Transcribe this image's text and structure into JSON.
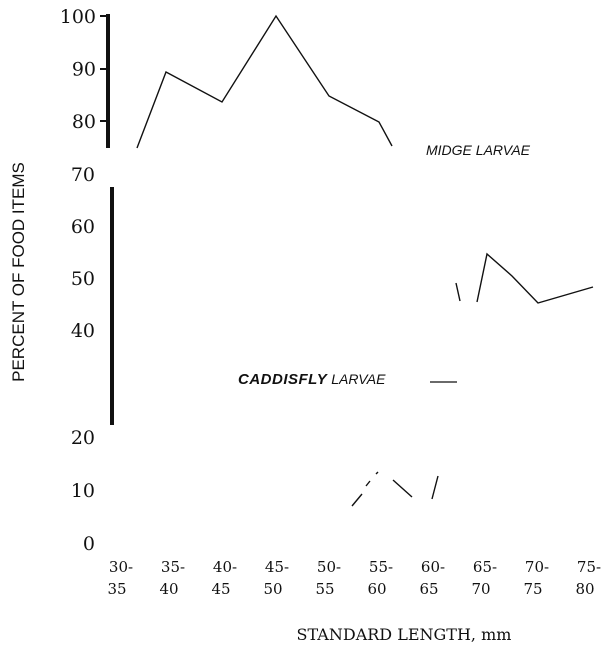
{
  "chart_data": {
    "type": "line",
    "title": "",
    "xlabel": "STANDARD LENGTH, mm",
    "ylabel": "PERCENT OF FOOD ITEMS",
    "categories": [
      {
        "top": "30-",
        "bottom": "35"
      },
      {
        "top": "35-",
        "bottom": "40"
      },
      {
        "top": "40-",
        "bottom": "45"
      },
      {
        "top": "45-",
        "bottom": "50"
      },
      {
        "top": "50-",
        "bottom": "55"
      },
      {
        "top": "55-",
        "bottom": "60"
      },
      {
        "top": "60-",
        "bottom": "65"
      },
      {
        "top": "65-",
        "bottom": "70"
      },
      {
        "top": "70-",
        "bottom": "75"
      },
      {
        "top": "75-",
        "bottom": "80"
      }
    ],
    "yticks": [
      "100",
      "90",
      "80",
      "70",
      "60",
      "50",
      "40",
      "20",
      "10",
      "0"
    ],
    "ylim": [
      0,
      100
    ],
    "series": [
      {
        "annotation": "MIDGE LARVAE",
        "style": "solid",
        "points": [
          {
            "x": "30-35",
            "y": 73
          },
          {
            "x": "35-40",
            "y": 89
          },
          {
            "x": "40-45",
            "y": 84
          },
          {
            "x": "45-50",
            "y": 100
          },
          {
            "x": "50-55",
            "y": 85
          },
          {
            "x": "55-60",
            "y": 80
          },
          {
            "x": "60-65",
            "y": 74
          },
          {
            "x": "65-70",
            "y": 55
          },
          {
            "x": "70-75",
            "y": 46
          },
          {
            "x": "75-80",
            "y": 48
          }
        ]
      },
      {
        "annotation_bold": "CADDISFLY",
        "annotation": "LARVAE",
        "style": "dashed",
        "points": [
          {
            "x": "55-60",
            "y": 8
          },
          {
            "x": "57-62",
            "y": 13
          },
          {
            "x": "60-65",
            "y": 9
          }
        ]
      }
    ],
    "grid": false,
    "legend": "none"
  }
}
